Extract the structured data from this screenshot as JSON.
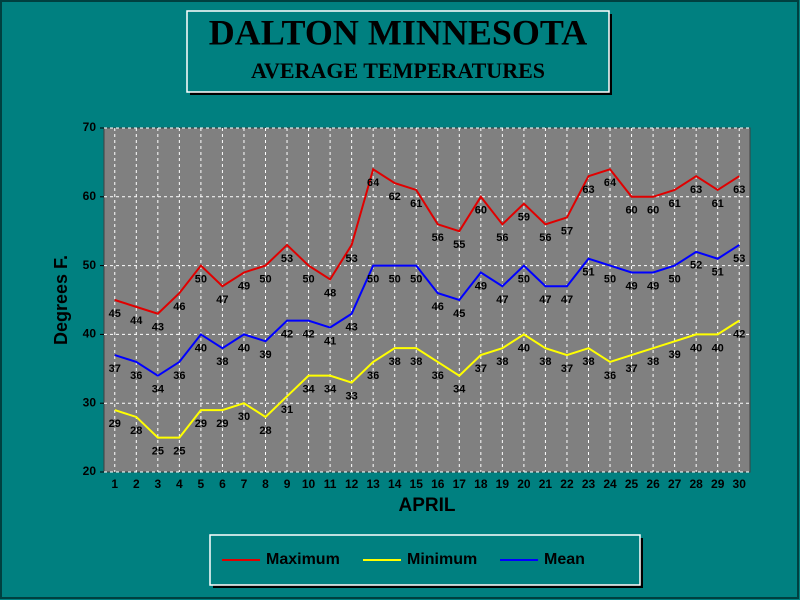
{
  "chart_data": {
    "type": "line",
    "title": "DALTON MINNESOTA",
    "subtitle": "AVERAGE TEMPERATURES",
    "x_label": "APRIL",
    "y_label": "Degrees F.",
    "categories": [
      "1",
      "2",
      "3",
      "4",
      "5",
      "6",
      "7",
      "8",
      "9",
      "10",
      "11",
      "12",
      "13",
      "14",
      "15",
      "16",
      "17",
      "18",
      "19",
      "20",
      "21",
      "22",
      "23",
      "24",
      "25",
      "26",
      "27",
      "28",
      "29",
      "30"
    ],
    "series": [
      {
        "name": "Maximum",
        "color": "#e00000",
        "values": [
          45,
          44,
          43,
          46,
          50,
          47,
          49,
          50,
          53,
          50,
          48,
          53,
          64,
          62,
          61,
          56,
          55,
          60,
          56,
          59,
          56,
          57,
          63,
          64,
          60,
          60,
          61,
          63,
          61,
          63
        ]
      },
      {
        "name": "Minimum",
        "color": "#ffff00",
        "values": [
          29,
          28,
          25,
          25,
          29,
          29,
          30,
          28,
          31,
          34,
          34,
          33,
          36,
          38,
          38,
          36,
          34,
          37,
          38,
          40,
          38,
          37,
          38,
          36,
          37,
          38,
          39,
          40,
          40,
          42
        ]
      },
      {
        "name": "Mean",
        "color": "#0000ff",
        "values": [
          37,
          36,
          34,
          36,
          40,
          38,
          40,
          39,
          42,
          42,
          41,
          43,
          50,
          50,
          50,
          46,
          45,
          49,
          47,
          50,
          47,
          47,
          51,
          50,
          49,
          49,
          50,
          52,
          51,
          53
        ]
      }
    ],
    "ylim": [
      20,
      70
    ],
    "yticks": [
      20,
      30,
      40,
      50,
      60,
      70
    ],
    "grid": true,
    "legend": "bottom"
  }
}
